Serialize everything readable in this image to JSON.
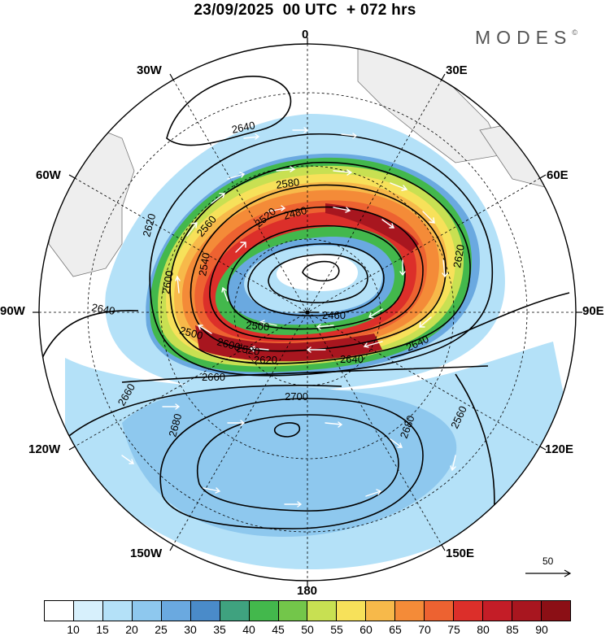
{
  "header": {
    "title": "23/09/2025  00 UTC  + 072 hrs",
    "brand": "MODES",
    "brand_mark": "©"
  },
  "map": {
    "projection": "polar-stereographic-south",
    "longitude_labels": [
      "0",
      "30E",
      "60E",
      "90E",
      "120E",
      "150E",
      "180",
      "150W",
      "120W",
      "90W",
      "60W",
      "30W"
    ],
    "contour_labels": [
      "2640",
      "2620",
      "2600",
      "2580",
      "2560",
      "2540",
      "2520",
      "2500",
      "2480",
      "2460",
      "2640",
      "2620",
      "2640",
      "2660",
      "2660",
      "2680",
      "2700",
      "2680",
      "2560",
      "2600",
      "2500",
      "2520",
      "2640",
      "2620"
    ],
    "vector_scale_label": "50",
    "colors": {
      "land": "#eeeeee",
      "contour": "#000000",
      "vector": "#ffffff",
      "graticule": "#000000"
    }
  },
  "colorbar": {
    "colors": [
      "#ffffff",
      "#d7f0fc",
      "#b4e1f8",
      "#8ec8ee",
      "#6aa9e0",
      "#4a8bc9",
      "#3fa27f",
      "#43b84c",
      "#73c64a",
      "#c8e052",
      "#f7e15a",
      "#f7b94a",
      "#f48b38",
      "#ed6231",
      "#dc2f2a",
      "#c41d27",
      "#a8161f",
      "#8b0f15"
    ],
    "labels": [
      "10",
      "15",
      "20",
      "25",
      "30",
      "35",
      "40",
      "45",
      "50",
      "55",
      "60",
      "65",
      "70",
      "75",
      "80",
      "85",
      "90"
    ]
  }
}
